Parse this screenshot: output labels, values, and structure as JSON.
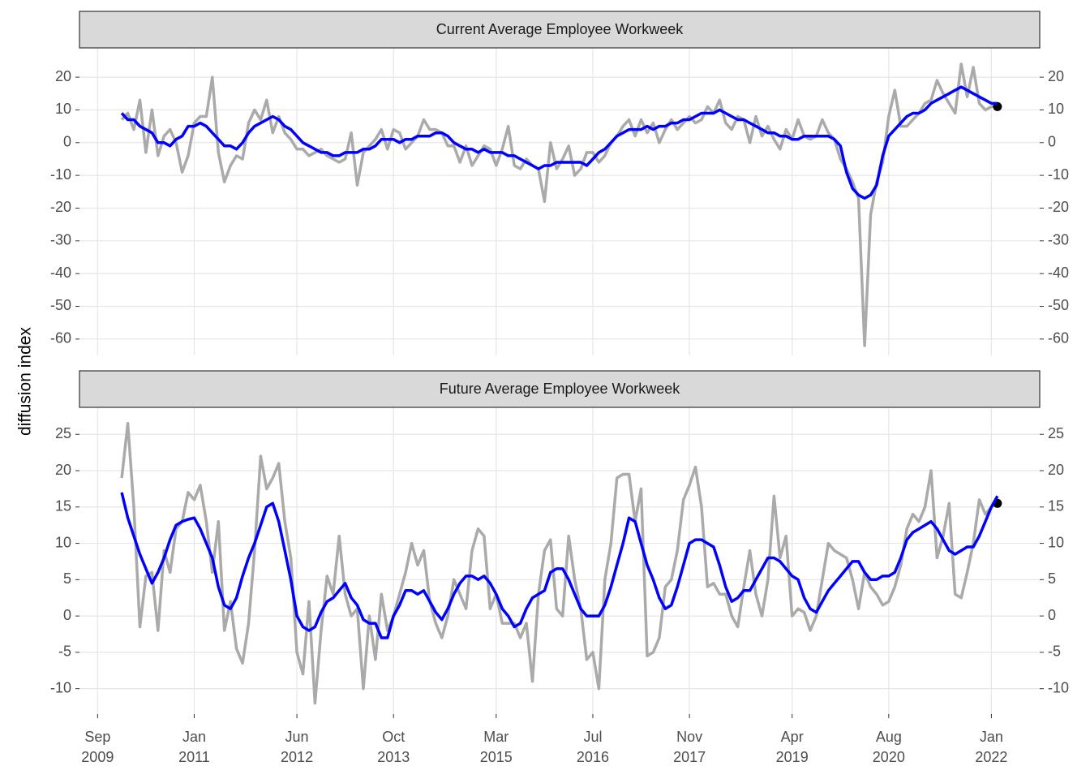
{
  "chart_data": {
    "type": "line",
    "ylabel": "diffusion index",
    "xlim": [
      "2009-06",
      "2022-09"
    ],
    "xticks": [
      {
        "value": "2009-09",
        "label": "Sep\n2009"
      },
      {
        "value": "2011-01",
        "label": "Jan\n2011"
      },
      {
        "value": "2012-06",
        "label": "Jun\n2012"
      },
      {
        "value": "2013-10",
        "label": "Oct\n2013"
      },
      {
        "value": "2015-03",
        "label": "Mar\n2015"
      },
      {
        "value": "2016-07",
        "label": "Jul\n2016"
      },
      {
        "value": "2017-11",
        "label": "Nov\n2017"
      },
      {
        "value": "2019-04",
        "label": "Apr\n2019"
      },
      {
        "value": "2020-08",
        "label": "Aug\n2020"
      },
      {
        "value": "2022-01",
        "label": "Jan\n2022"
      }
    ],
    "x": [
      "2010-01",
      "2010-02",
      "2010-03",
      "2010-04",
      "2010-05",
      "2010-06",
      "2010-07",
      "2010-08",
      "2010-09",
      "2010-10",
      "2010-11",
      "2010-12",
      "2011-01",
      "2011-02",
      "2011-03",
      "2011-04",
      "2011-05",
      "2011-06",
      "2011-07",
      "2011-08",
      "2011-09",
      "2011-10",
      "2011-11",
      "2011-12",
      "2012-01",
      "2012-02",
      "2012-03",
      "2012-04",
      "2012-05",
      "2012-06",
      "2012-07",
      "2012-08",
      "2012-09",
      "2012-10",
      "2012-11",
      "2012-12",
      "2013-01",
      "2013-02",
      "2013-03",
      "2013-04",
      "2013-05",
      "2013-06",
      "2013-07",
      "2013-08",
      "2013-09",
      "2013-10",
      "2013-11",
      "2013-12",
      "2014-01",
      "2014-02",
      "2014-03",
      "2014-04",
      "2014-05",
      "2014-06",
      "2014-07",
      "2014-08",
      "2014-09",
      "2014-10",
      "2014-11",
      "2014-12",
      "2015-01",
      "2015-02",
      "2015-03",
      "2015-04",
      "2015-05",
      "2015-06",
      "2015-07",
      "2015-08",
      "2015-09",
      "2015-10",
      "2015-11",
      "2015-12",
      "2016-01",
      "2016-02",
      "2016-03",
      "2016-04",
      "2016-05",
      "2016-06",
      "2016-07",
      "2016-08",
      "2016-09",
      "2016-10",
      "2016-11",
      "2016-12",
      "2017-01",
      "2017-02",
      "2017-03",
      "2017-04",
      "2017-05",
      "2017-06",
      "2017-07",
      "2017-08",
      "2017-09",
      "2017-10",
      "2017-11",
      "2017-12",
      "2018-01",
      "2018-02",
      "2018-03",
      "2018-04",
      "2018-05",
      "2018-06",
      "2018-07",
      "2018-08",
      "2018-09",
      "2018-10",
      "2018-11",
      "2018-12",
      "2019-01",
      "2019-02",
      "2019-03",
      "2019-04",
      "2019-05",
      "2019-06",
      "2019-07",
      "2019-08",
      "2019-09",
      "2019-10",
      "2019-11",
      "2019-12",
      "2020-01",
      "2020-02",
      "2020-03",
      "2020-04",
      "2020-05",
      "2020-06",
      "2020-07",
      "2020-08",
      "2020-09",
      "2020-10",
      "2020-11",
      "2020-12",
      "2021-01",
      "2021-02",
      "2021-03",
      "2021-04",
      "2021-05",
      "2021-06",
      "2021-07",
      "2021-08",
      "2021-09",
      "2021-10",
      "2021-11",
      "2021-12",
      "2022-01",
      "2022-02"
    ],
    "panels": [
      {
        "title": "Current Average Employee Workweek",
        "ylim": [
          -65,
          28.7
        ],
        "yticks": [
          20,
          10,
          0,
          -10,
          -20,
          -30,
          -40,
          -50,
          -60
        ],
        "grid": true,
        "series": [
          {
            "color": "#aaaaaa",
            "end_point": true,
            "values": [
              7,
              9,
              4,
              13,
              -3,
              10,
              -4,
              2,
              4,
              0,
              -9,
              -4,
              6,
              8,
              8,
              20,
              -3,
              -12,
              -7,
              -4,
              -5,
              6,
              10,
              7,
              13,
              3,
              8,
              3,
              1,
              -2,
              -2,
              -4,
              -3,
              -2,
              -4,
              -5,
              -6,
              -5,
              3,
              -13,
              -3,
              -1,
              1,
              4,
              -2,
              4,
              3,
              -2,
              0,
              2,
              7,
              4,
              4,
              3,
              -1,
              -1,
              -6,
              -1,
              -7,
              -4,
              -1,
              -2,
              -7,
              -2,
              5,
              -7,
              -8,
              -5,
              -7,
              -8,
              -18,
              0,
              -8,
              -5,
              -1,
              -10,
              -8,
              -3,
              -3,
              -6,
              -4,
              0,
              2,
              5,
              7,
              2,
              7,
              3,
              6,
              0,
              4,
              7,
              4,
              6,
              8,
              6,
              7,
              11,
              9,
              13,
              6,
              4,
              8,
              7,
              0,
              8,
              2,
              5,
              1,
              -2,
              4,
              1,
              7,
              2,
              1,
              2,
              7,
              3,
              1,
              -5,
              -8,
              -12,
              -17,
              -62,
              -22,
              -12,
              -6,
              8,
              16,
              5,
              5,
              7,
              9,
              12,
              13,
              19,
              15,
              12,
              9,
              24,
              14,
              23,
              12,
              10,
              11,
              11
            ]
          },
          {
            "color": "#0000ff",
            "values": [
              9,
              7,
              7,
              5,
              4,
              3,
              0,
              0,
              -1,
              1,
              2,
              5,
              5,
              6,
              5,
              3,
              1,
              -1,
              -1,
              -2,
              0,
              3,
              5,
              6,
              7,
              8,
              7,
              5,
              4,
              2,
              0,
              -1,
              -2,
              -3,
              -3,
              -4,
              -4,
              -3,
              -3,
              -3,
              -2,
              -2,
              -1,
              1,
              1,
              1,
              0,
              1,
              1,
              2,
              2,
              2,
              3,
              3,
              2,
              0,
              -1,
              -2,
              -2,
              -3,
              -2,
              -3,
              -3,
              -3,
              -4,
              -4,
              -5,
              -6,
              -7,
              -8,
              -7,
              -7,
              -6,
              -6,
              -6,
              -6,
              -6,
              -7,
              -5,
              -3,
              -2,
              0,
              2,
              3,
              4,
              4,
              4,
              5,
              4,
              5,
              5,
              6,
              6,
              7,
              7,
              8,
              9,
              9,
              9,
              10,
              9,
              8,
              7,
              7,
              6,
              5,
              4,
              3,
              3,
              2,
              2,
              1,
              1,
              2,
              2,
              2,
              2,
              2,
              1,
              -1,
              -9,
              -14,
              -16,
              -17,
              -16,
              -13,
              -4,
              2,
              4,
              6,
              8,
              9,
              9,
              10,
              12,
              13,
              14,
              15,
              16,
              17,
              16,
              15,
              14,
              13,
              12,
              12
            ]
          }
        ]
      },
      {
        "title": "Future Average Employee Workweek",
        "ylim": [
          -13.5,
          28.6
        ],
        "yticks": [
          25,
          20,
          15,
          10,
          5,
          0,
          -5,
          -10
        ],
        "grid": true,
        "series": [
          {
            "color": "#aaaaaa",
            "end_point": true,
            "values": [
              19,
              26.5,
              15,
              -1.5,
              5.5,
              6,
              -2,
              9,
              6,
              12,
              13,
              17,
              16,
              18,
              13,
              6,
              13,
              -2,
              2,
              -4.5,
              -6.5,
              -1,
              9,
              22,
              17.5,
              19,
              21,
              13,
              8,
              -5,
              -8,
              2,
              -12,
              -2,
              5.5,
              3,
              11,
              3,
              0,
              1,
              -10,
              0,
              -6,
              3,
              -2,
              0,
              3,
              6,
              10,
              7,
              9,
              2,
              -1,
              -3,
              0,
              5,
              3,
              1,
              9,
              12,
              11,
              1,
              3,
              -1,
              -1,
              -1,
              -3,
              -1,
              -9,
              3,
              9,
              10.5,
              1,
              0,
              11,
              5,
              1,
              -6,
              -5,
              -10,
              5,
              10,
              19,
              19.5,
              19.5,
              13,
              17.5,
              -5.5,
              -5,
              -3,
              4,
              5,
              9,
              16,
              18,
              20.5,
              15,
              4,
              4.5,
              3,
              3,
              0,
              -1.5,
              4,
              9,
              3,
              0,
              5,
              16.5,
              8,
              11,
              0,
              1,
              0.5,
              -2,
              0,
              5,
              10,
              9,
              8.5,
              8,
              5,
              1,
              6,
              4,
              3,
              1.5,
              2,
              4,
              7,
              12,
              14,
              13,
              15,
              20,
              8,
              11,
              15.5,
              3,
              2.5,
              6,
              10,
              16,
              14,
              15,
              15.5
            ]
          },
          {
            "color": "#0000ff",
            "values": [
              17,
              13.5,
              11,
              8.5,
              6.5,
              4.5,
              6,
              8,
              10.5,
              12.5,
              13,
              13.3,
              13.5,
              12,
              10,
              8,
              4,
              1.5,
              1,
              2.5,
              5.5,
              8,
              10,
              12.5,
              15,
              15.5,
              13,
              9,
              5,
              0,
              -1.5,
              -2,
              -1.5,
              0.5,
              2,
              2.5,
              3.5,
              4.5,
              2.5,
              1.5,
              -0.5,
              -1,
              -1,
              -3,
              -3,
              0,
              1.5,
              3.5,
              3.5,
              3,
              3.5,
              2,
              0.5,
              -0.5,
              1,
              3,
              4.5,
              5.5,
              5.5,
              5,
              5.5,
              4.5,
              3,
              1,
              0,
              -1.5,
              -1,
              1,
              2.5,
              3,
              3.5,
              6,
              6.5,
              6.5,
              5,
              3,
              1,
              0,
              0,
              0,
              1.5,
              4,
              7,
              10,
              13.5,
              13,
              10,
              7,
              5,
              2.5,
              1,
              1.5,
              4,
              7,
              10,
              10.5,
              10.5,
              10,
              9.5,
              7,
              4,
              2,
              2.5,
              3.5,
              3.5,
              5,
              6.5,
              8,
              8,
              7.5,
              6.5,
              5.5,
              5,
              2.5,
              1,
              0.5,
              2,
              3.5,
              4.5,
              5.5,
              6.5,
              7.5,
              7.5,
              6,
              5,
              5,
              5.5,
              5.5,
              6,
              8,
              10.5,
              11.5,
              12,
              12.5,
              13,
              12,
              10.5,
              9,
              8.5,
              9,
              9.5,
              9.5,
              11,
              13,
              15,
              16.5
            ]
          }
        ]
      }
    ]
  }
}
